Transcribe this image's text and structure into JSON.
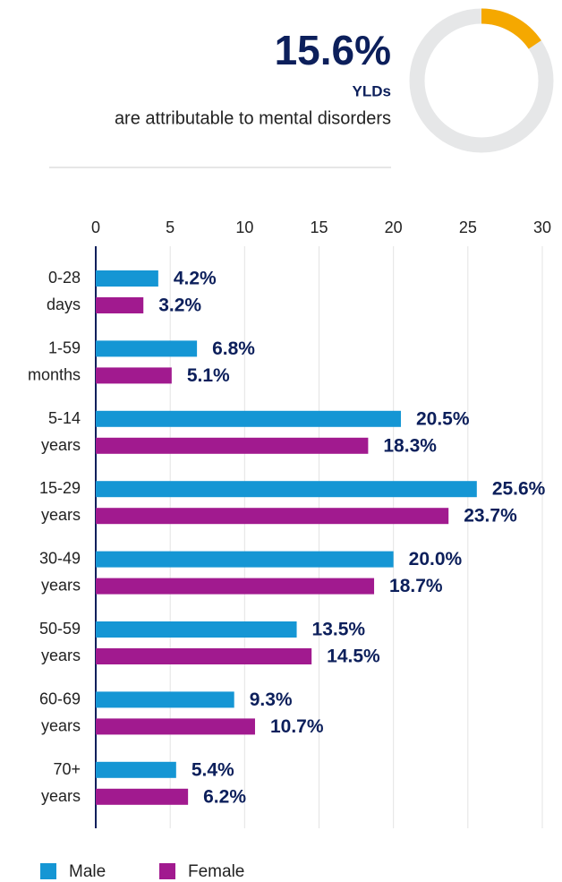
{
  "chart_data": [
    {
      "type": "donut",
      "values": [
        15.6
      ],
      "value_labels": [
        "15.6%"
      ],
      "subtitle": "YLDs",
      "annotation": "are attributable to mental disorders",
      "color": "#f5a800",
      "track_color": "#e6e7e8"
    },
    {
      "type": "hbar",
      "categories": [
        "0-28 days",
        "1-59 months",
        "5-14 years",
        "15-29 years",
        "30-49 years",
        "50-59 years",
        "60-69 years",
        "70+ years"
      ],
      "series": [
        {
          "name": "Male",
          "color": "#1596d4",
          "values": [
            4.2,
            6.8,
            20.5,
            25.6,
            20.0,
            13.5,
            9.3,
            5.4
          ],
          "value_labels": [
            "4.2%",
            "6.8%",
            "20.5%",
            "25.6%",
            "20.0%",
            "13.5%",
            "9.3%",
            "5.4%"
          ]
        },
        {
          "name": "Female",
          "color": "#a11a8f",
          "values": [
            3.2,
            5.1,
            18.3,
            23.7,
            18.7,
            14.5,
            10.7,
            6.2
          ],
          "value_labels": [
            "3.2%",
            "5.1%",
            "18.3%",
            "23.7%",
            "18.7%",
            "14.5%",
            "10.7%",
            "6.2%"
          ]
        }
      ],
      "xlim": [
        0,
        30
      ],
      "xticks": [
        0,
        5,
        10,
        15,
        20,
        25,
        30
      ],
      "grid": true,
      "legend": "bottom"
    }
  ]
}
